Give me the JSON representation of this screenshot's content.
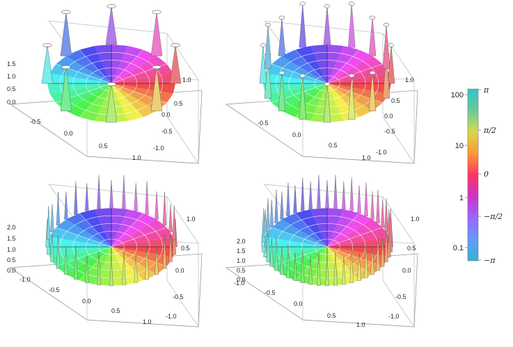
{
  "chart_data": {
    "type": "surface3d",
    "panels": [
      {
        "position": "top-left",
        "z_ticks": [
          "1.5",
          "1.0",
          "0.5",
          "0.0"
        ],
        "x_ticks": [
          "-0.5",
          "0.0",
          "0.5",
          "1.0"
        ],
        "y_ticks": [
          "1.0",
          "0.5",
          "0.0",
          "-0.5",
          "-1.0"
        ],
        "spikes": 8
      },
      {
        "position": "top-right",
        "z_ticks": [],
        "x_ticks": [
          "-0.5",
          "0.0",
          "0.5",
          "1.0"
        ],
        "y_ticks": [
          "1.0",
          "0.5",
          "0.0",
          "-0.5",
          "-1.0"
        ],
        "spikes": 16
      },
      {
        "position": "bottom-left",
        "z_ticks": [
          "2.0",
          "1.5",
          "1.0",
          "0.5",
          "0.0"
        ],
        "x_ticks": [
          "-1.0",
          "-0.5",
          "0.0",
          "0.5",
          "1.0"
        ],
        "y_ticks": [
          "1.0",
          "0.5",
          "0.0",
          "-0.5",
          "-1.0"
        ],
        "spikes": 32
      },
      {
        "position": "bottom-right",
        "z_ticks": [
          "2.0",
          "1.5",
          "1.0",
          "0.5",
          "0.0"
        ],
        "x_ticks": [
          "-1.0",
          "-0.5",
          "0.0",
          "0.5",
          "1.0"
        ],
        "y_ticks": [
          "1.0",
          "0.5",
          "0.0",
          "-0.5",
          "-1.0"
        ],
        "spikes": 48
      }
    ],
    "legend": {
      "magnitude_ticks": [
        "100",
        "10",
        "1",
        "0.1"
      ],
      "phase_ticks": [
        "π",
        "π/2",
        "0",
        "−π/2",
        "−π"
      ],
      "colors": [
        "#33c2c9",
        "#66cc99",
        "#d9d94a",
        "#ff9933",
        "#ff3366",
        "#cc33cc",
        "#9966ff",
        "#6699ff",
        "#33b3cc"
      ]
    }
  }
}
